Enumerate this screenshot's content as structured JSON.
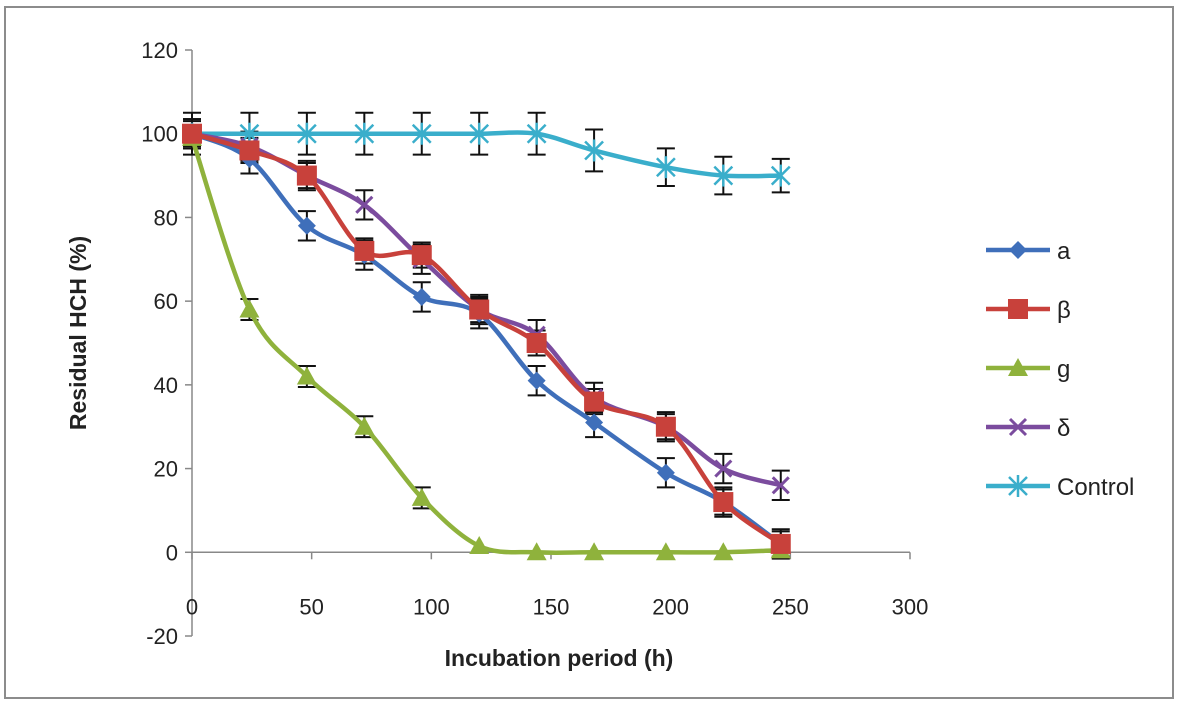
{
  "chart_data": {
    "type": "line",
    "title": "",
    "xlabel": "Incubation period (h)",
    "ylabel": "Residual HCH (%)",
    "xlim": [
      0,
      300
    ],
    "ylim": [
      -20,
      120
    ],
    "xticks": [
      0,
      50,
      100,
      150,
      200,
      250,
      300
    ],
    "yticks": [
      -20,
      0,
      20,
      40,
      60,
      80,
      100,
      120
    ],
    "grid": false,
    "legend_position": "right",
    "series": [
      {
        "name": "a",
        "color": "#3f6fba",
        "marker": "diamond",
        "x": [
          0,
          24,
          48,
          72,
          96,
          120,
          144,
          168,
          198,
          222,
          246
        ],
        "y": [
          100,
          94,
          78,
          71,
          61,
          57,
          41,
          31,
          19,
          12,
          2
        ]
      },
      {
        "name": "β",
        "color": "#c8413b",
        "marker": "square",
        "x": [
          0,
          24,
          48,
          72,
          96,
          120,
          144,
          168,
          198,
          222,
          246
        ],
        "y": [
          100,
          96,
          90,
          72,
          71,
          58,
          50,
          36,
          30,
          12,
          2
        ]
      },
      {
        "name": "g",
        "color": "#8fb23c",
        "marker": "triangle",
        "x": [
          0,
          24,
          48,
          72,
          96,
          120,
          144,
          168,
          198,
          222,
          246
        ],
        "y": [
          99,
          58,
          42,
          30,
          13,
          1.5,
          0,
          0,
          0,
          0,
          0.5
        ]
      },
      {
        "name": "δ",
        "color": "#7b4c9e",
        "marker": "x",
        "x": [
          0,
          24,
          48,
          72,
          96,
          120,
          144,
          168,
          198,
          222,
          246
        ],
        "y": [
          100,
          97,
          90,
          83,
          70,
          58,
          52,
          37,
          30,
          20,
          16
        ]
      },
      {
        "name": "Control",
        "color": "#3aaecb",
        "marker": "star",
        "x": [
          0,
          24,
          48,
          72,
          96,
          120,
          144,
          168,
          198,
          222,
          246
        ],
        "y": [
          100,
          100,
          100,
          100,
          100,
          100,
          100,
          96,
          92,
          90,
          90
        ],
        "error": [
          5,
          5,
          5,
          5,
          5,
          5,
          5,
          5,
          4.5,
          4.5,
          4
        ]
      }
    ]
  }
}
